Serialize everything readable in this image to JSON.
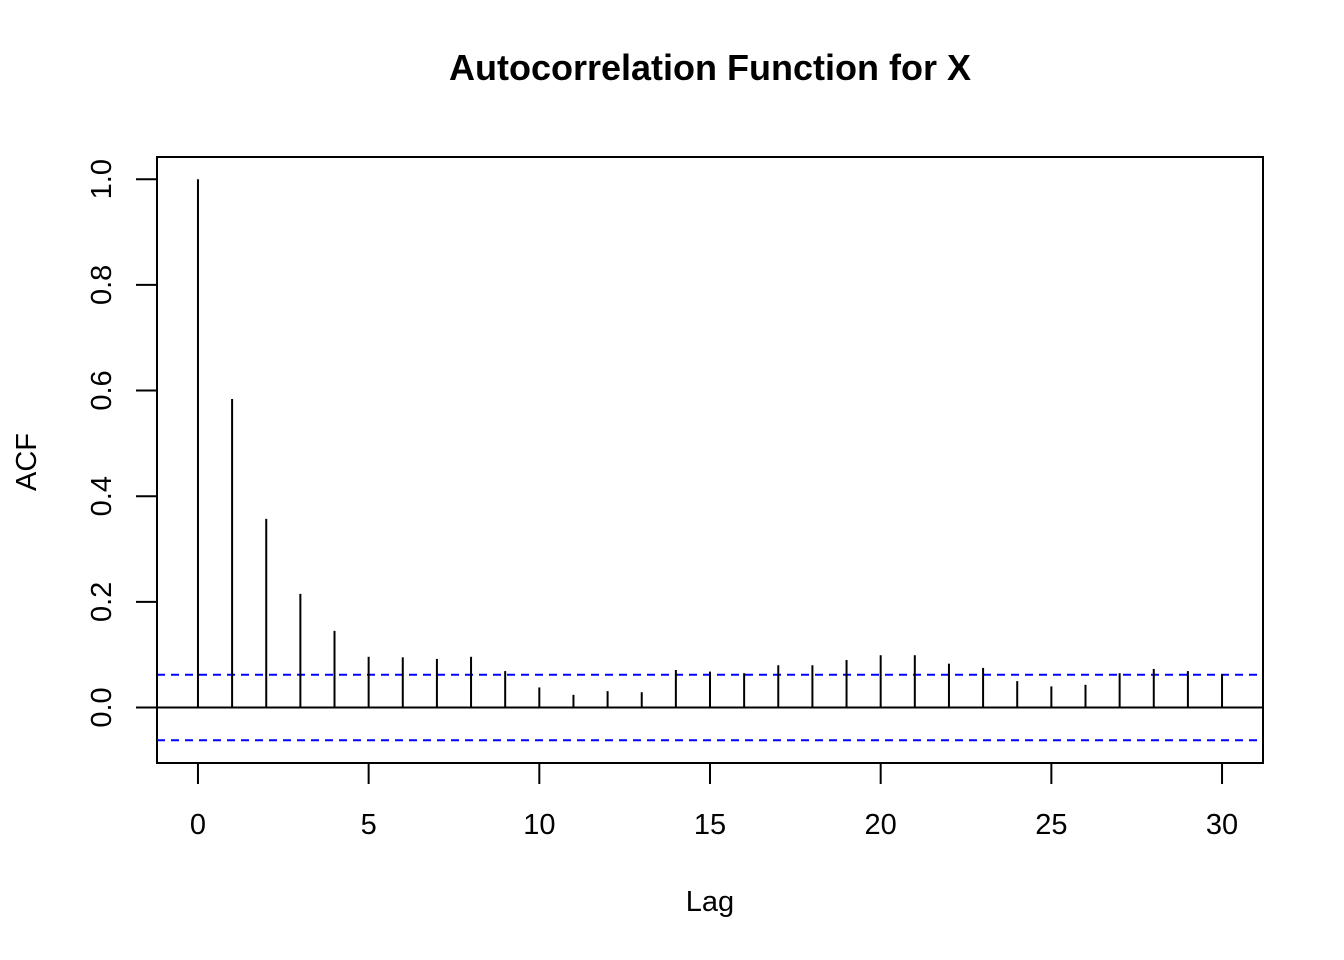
{
  "chart_data": {
    "type": "bar",
    "title": "Autocorrelation Function for X",
    "xlabel": "Lag",
    "ylabel": "ACF",
    "xlim": [
      -1.2,
      31.2
    ],
    "ylim": [
      -0.105,
      1.042
    ],
    "x_ticks": [
      0,
      5,
      10,
      15,
      20,
      25,
      30
    ],
    "x_tick_labels": [
      "0",
      "5",
      "10",
      "15",
      "20",
      "25",
      "30"
    ],
    "y_ticks": [
      0.0,
      0.2,
      0.4,
      0.6,
      0.8,
      1.0
    ],
    "y_tick_labels": [
      "0.0",
      "0.2",
      "0.4",
      "0.6",
      "0.8",
      "1.0"
    ],
    "lags": [
      0,
      1,
      2,
      3,
      4,
      5,
      6,
      7,
      8,
      9,
      10,
      11,
      12,
      13,
      14,
      15,
      16,
      17,
      18,
      19,
      20,
      21,
      22,
      23,
      24,
      25,
      26,
      27,
      28,
      29,
      30
    ],
    "values": [
      1.0,
      0.584,
      0.357,
      0.215,
      0.145,
      0.096,
      0.095,
      0.092,
      0.096,
      0.069,
      0.038,
      0.024,
      0.031,
      0.029,
      0.071,
      0.068,
      0.065,
      0.08,
      0.08,
      0.09,
      0.099,
      0.099,
      0.083,
      0.075,
      0.05,
      0.04,
      0.043,
      0.065,
      0.073,
      0.069,
      0.063
    ],
    "confidence_bounds": [
      0.062,
      -0.062
    ],
    "grid": false,
    "legend": "none",
    "colors": {
      "bars": "#000000",
      "bounds": "#0000ff",
      "axes": "#000000",
      "zero_line": "#000000"
    }
  }
}
